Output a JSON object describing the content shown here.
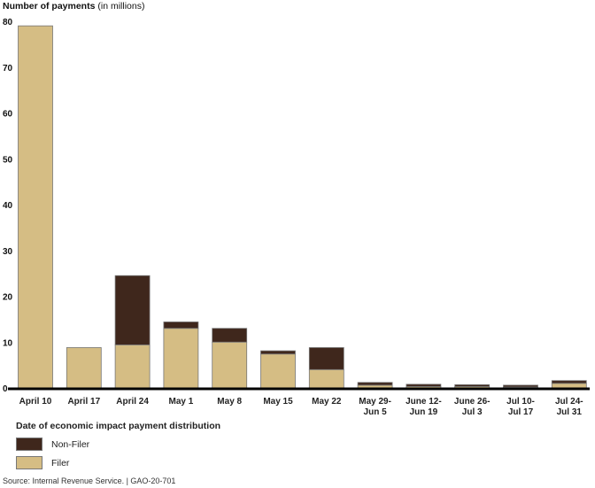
{
  "chart_data": {
    "type": "bar",
    "stacked": true,
    "title": "Number of payments",
    "title_unit": "(in millions)",
    "xlabel": "Date of economic impact payment distribution",
    "ylabel": "",
    "ylim": [
      0,
      80
    ],
    "yticks": [
      0,
      10,
      20,
      30,
      40,
      50,
      60,
      70,
      80
    ],
    "grid": false,
    "legend_placement": "bottom-left",
    "categories": [
      [
        "April 10"
      ],
      [
        "April 17"
      ],
      [
        "April 24"
      ],
      [
        "May 1"
      ],
      [
        "May 8"
      ],
      [
        "May 15"
      ],
      [
        "May 22"
      ],
      [
        "May 29-",
        "Jun 5"
      ],
      [
        "June 12-",
        "Jun 19"
      ],
      [
        "June 26-",
        "Jul 3"
      ],
      [
        "Jul 10-",
        "Jul 17"
      ],
      [
        "Jul 24-",
        "Jul 31"
      ]
    ],
    "series": [
      {
        "name": "Filer",
        "color": "#d5bd84",
        "values": [
          79,
          8.8,
          9.4,
          13,
          10,
          7.4,
          4,
          0.6,
          0.3,
          0.3,
          0.2,
          1.0
        ]
      },
      {
        "name": "Non-Filer",
        "color": "#3f271c",
        "values": [
          0,
          0,
          15.1,
          1.4,
          3,
          0.7,
          4.8,
          0.6,
          0.5,
          0.4,
          0.4,
          0.6
        ]
      }
    ],
    "legend_order": [
      "Non-Filer",
      "Filer"
    ],
    "source": "Source: Internal Revenue Service. | GAO-20-701"
  }
}
